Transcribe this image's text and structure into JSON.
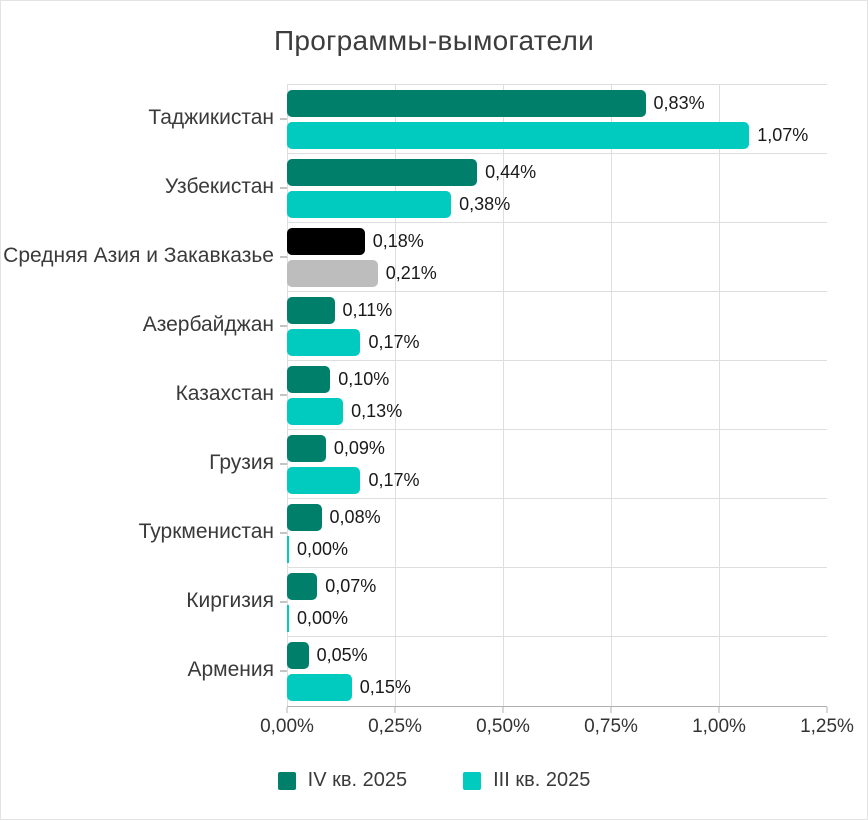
{
  "chart_data": {
    "type": "bar",
    "orientation": "horizontal",
    "title": "Программы-вымогатели",
    "categories": [
      "Таджикистан",
      "Узбекистан",
      "Средняя Азия и Закавказье",
      "Азербайджан",
      "Казахстан",
      "Грузия",
      "Туркменистан",
      "Киргизия",
      "Армения"
    ],
    "series": [
      {
        "name": "IV кв. 2025",
        "color": "#00806B",
        "values": [
          0.83,
          0.44,
          0.18,
          0.11,
          0.1,
          0.09,
          0.08,
          0.07,
          0.05
        ],
        "labels": [
          "0,83%",
          "0,44%",
          "0,18%",
          "0,11%",
          "0,10%",
          "0,09%",
          "0,08%",
          "0,07%",
          "0,05%"
        ]
      },
      {
        "name": "III кв. 2025",
        "color": "#00CBBE",
        "values": [
          1.07,
          0.38,
          0.21,
          0.17,
          0.13,
          0.17,
          0.0,
          0.0,
          0.15
        ],
        "labels": [
          "1,07%",
          "0,38%",
          "0,21%",
          "0,17%",
          "0,13%",
          "0,17%",
          "0,00%",
          "0,00%",
          "0,15%"
        ]
      }
    ],
    "highlight": {
      "category_index": 2,
      "series_colors": [
        "#000000",
        "#BDBDBD"
      ]
    },
    "x_ticks": [
      "0,00%",
      "0,25%",
      "0,50%",
      "0,75%",
      "1,00%",
      "1,25%"
    ],
    "x_tick_values": [
      0,
      0.25,
      0.5,
      0.75,
      1.0,
      1.25
    ],
    "xlim": [
      0,
      1.25
    ],
    "grid": true,
    "legend_position": "bottom"
  }
}
